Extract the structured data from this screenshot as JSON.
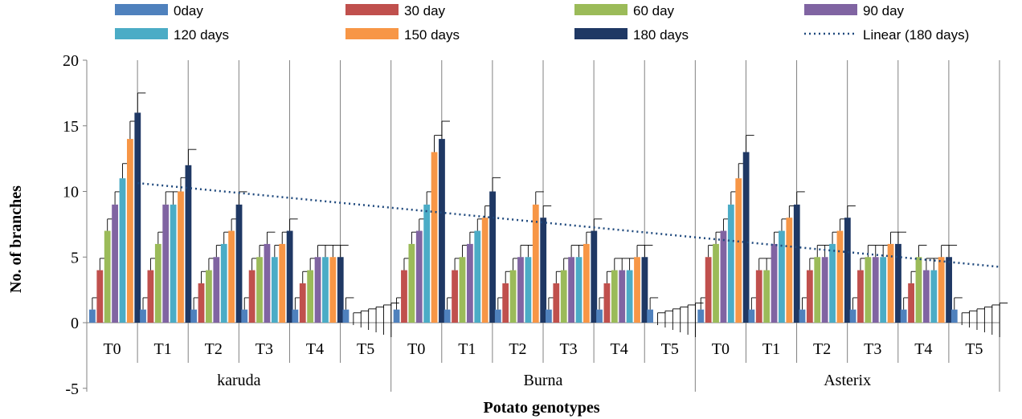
{
  "chart_data": {
    "type": "bar",
    "xlabel": "Potato genotypes",
    "ylabel": "No. of branches",
    "ylim": [
      -5,
      20
    ],
    "yticks": [
      -5,
      0,
      5,
      10,
      15,
      20
    ],
    "groups": [
      {
        "label": "karuda",
        "treatments": [
          "T0",
          "T1",
          "T2",
          "T3",
          "T4",
          "T5"
        ]
      },
      {
        "label": "Burna",
        "treatments": [
          "T0",
          "T1",
          "T2",
          "T3",
          "T4",
          "T5"
        ]
      },
      {
        "label": "Asterix",
        "treatments": [
          "T0",
          "T1",
          "T2",
          "T3",
          "T4",
          "T5"
        ]
      }
    ],
    "categories": [
      "T0",
      "T1",
      "T2",
      "T3",
      "T4",
      "T5",
      "T0",
      "T1",
      "T2",
      "T3",
      "T4",
      "T5",
      "T0",
      "T1",
      "T2",
      "T3",
      "T4",
      "T5"
    ],
    "series": [
      {
        "name": "0day",
        "color": "#4f81bd",
        "values": [
          1,
          1,
          1,
          1,
          1,
          1,
          1,
          1,
          1,
          1,
          1,
          1,
          1,
          1,
          1,
          1,
          1,
          1
        ]
      },
      {
        "name": "30 day",
        "color": "#c0504d",
        "values": [
          4,
          4,
          3,
          4,
          3,
          0,
          4,
          4,
          3,
          3,
          3,
          0,
          5,
          4,
          4,
          4,
          3,
          0
        ]
      },
      {
        "name": "60 day",
        "color": "#9bbb59",
        "values": [
          7,
          6,
          4,
          5,
          4,
          0,
          6,
          5,
          4,
          4,
          4,
          0,
          6,
          4,
          5,
          5,
          5,
          0
        ]
      },
      {
        "name": "90 day",
        "color": "#8064a2",
        "values": [
          9,
          9,
          5,
          6,
          5,
          0,
          7,
          6,
          5,
          5,
          4,
          0,
          7,
          6,
          5,
          5,
          4,
          0
        ]
      },
      {
        "name": "120 days",
        "color": "#4bacc6",
        "values": [
          11,
          9,
          6,
          5,
          5,
          0,
          9,
          7,
          5,
          5,
          4,
          0,
          9,
          7,
          6,
          5,
          4,
          0
        ]
      },
      {
        "name": "150 days",
        "color": "#f79646",
        "values": [
          14,
          10,
          7,
          6,
          5,
          0,
          13,
          8,
          9,
          6,
          5,
          0,
          11,
          8,
          7,
          6,
          5,
          0
        ]
      },
      {
        "name": "180 days",
        "color": "#1f3864",
        "values": [
          16,
          12,
          9,
          7,
          5,
          0,
          14,
          10,
          8,
          7,
          5,
          0,
          13,
          9,
          8,
          6,
          5,
          0
        ]
      }
    ],
    "error_bars": "plus-only",
    "trendline": {
      "name": "Linear (180 days)",
      "series": "180 days",
      "style": "dotted",
      "color": "#1f497d"
    },
    "legend_position": "top",
    "grid": false
  }
}
